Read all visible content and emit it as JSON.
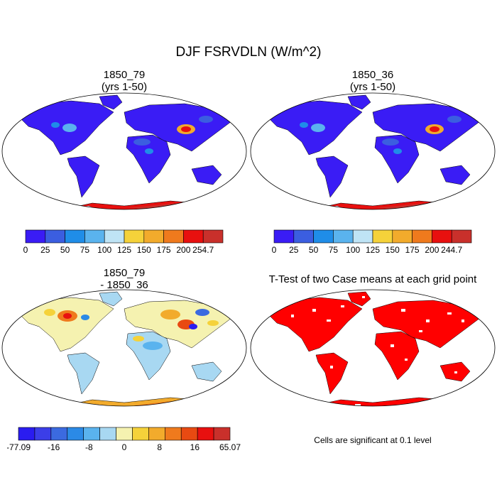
{
  "title": "DJF FSRVDLN (W/m^2)",
  "panels": [
    {
      "title1": "1850_79",
      "title2": "(yrs 1-50)"
    },
    {
      "title1": "1850_36",
      "title2": "(yrs 1-50)"
    },
    {
      "title1": "1850_79",
      "title2": "- 1850_36"
    },
    {
      "title1": "T-Test of two Case means at each grid point"
    }
  ],
  "colorbars": [
    {
      "colors": [
        "#3a1cf5",
        "#3b5ee0",
        "#1f8de8",
        "#5ab3ee",
        "#bfe4f5",
        "#f5d23a",
        "#f2ab2c",
        "#ef7a1d",
        "#e8100f",
        "#c9302b"
      ],
      "labels": [
        "0",
        "25",
        "50",
        "75",
        "100",
        "125",
        "150",
        "175",
        "200",
        "254.7"
      ]
    },
    {
      "colors": [
        "#3a1cf5",
        "#3b5ee0",
        "#1f8de8",
        "#5ab3ee",
        "#bfe4f5",
        "#f5d23a",
        "#f2ab2c",
        "#ef7a1d",
        "#e8100f",
        "#c9302b"
      ],
      "labels": [
        "0",
        "25",
        "50",
        "75",
        "100",
        "125",
        "150",
        "175",
        "200",
        "244.7"
      ]
    },
    {
      "colors": [
        "#2a1cf0",
        "#3b3ee8",
        "#3b6ae0",
        "#2b8ae6",
        "#5ab3ee",
        "#a8d8f2",
        "#f5f2b0",
        "#f5d23a",
        "#f2ab2c",
        "#ef7a1d",
        "#e84a12",
        "#e8100f",
        "#c9302b"
      ],
      "labels": [
        "-77.09",
        "-16",
        "-8",
        "0",
        "8",
        "16",
        "65.07"
      ]
    }
  ],
  "note": "Cells are significant at 0.1 level",
  "colors": {
    "land_low": "#3a1cf5",
    "antarctic_high": "#e8100f",
    "significant": "#ff0000",
    "diff_land": "#f5f2b0"
  }
}
